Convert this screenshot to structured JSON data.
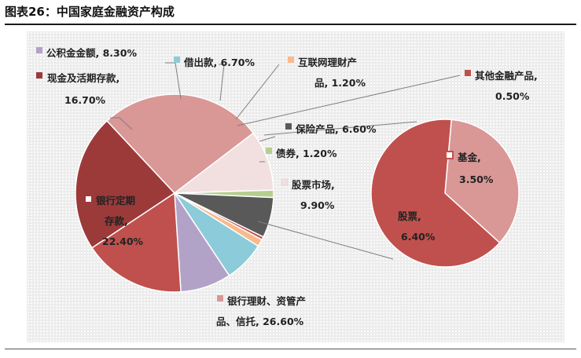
{
  "title": "图表26：中国家庭金融资产构成",
  "chart_data": {
    "type": "pie",
    "title": "图表26：中国家庭金融资产构成",
    "slices": [
      {
        "name": "银行定期存款",
        "value": 22.4,
        "display": "22.40%",
        "color": "#9c3a3a"
      },
      {
        "name": "银行理财、资管产品、信托",
        "value": 26.6,
        "display": "26.60%",
        "color": "#d99796"
      },
      {
        "name": "股票市场",
        "value": 9.9,
        "display": "9.90%",
        "color": "#f1e0df"
      },
      {
        "name": "债券",
        "value": 1.2,
        "display": "1.20%",
        "color": "#b5cf8e"
      },
      {
        "name": "保险产品",
        "value": 6.6,
        "display": "6.60%",
        "color": "#595959"
      },
      {
        "name": "其他金融产品",
        "value": 0.5,
        "display": "0.50%",
        "color": "#c0504d"
      },
      {
        "name": "互联网理财产品",
        "value": 1.2,
        "display": "1.20%",
        "color": "#f9b98c"
      },
      {
        "name": "借出款",
        "value": 6.7,
        "display": "6.70%",
        "color": "#8ccbd9"
      },
      {
        "name": "公积金金额",
        "value": 8.3,
        "display": "8.30%",
        "color": "#b3a2c7"
      },
      {
        "name": "现金及活期存款",
        "value": 16.7,
        "display": "16.70%",
        "color": "#c0504d"
      }
    ],
    "sub_pie": {
      "parent": "股票市场",
      "slices": [
        {
          "name": "基金",
          "value": 3.5,
          "display": "3.50%",
          "color": "#d99796"
        },
        {
          "name": "股票",
          "value": 6.4,
          "display": "6.40%",
          "color": "#c0504d"
        }
      ]
    }
  },
  "labels": {
    "gjj": {
      "name": "公积金金额,",
      "value": "8.30%",
      "text": "公积金金额, 8.30%"
    },
    "jck": {
      "name": "借出款,",
      "value": "6.70%",
      "text": "借出款, 6.70%"
    },
    "hlw": {
      "line1": "互联网理财产",
      "line2": "品, 1.20%"
    },
    "qita": {
      "line1": "其他金融产品,",
      "line2": "0.50%"
    },
    "xj": {
      "line1": "现金及活期存款,",
      "line2": "16.70%"
    },
    "bx": {
      "text": "保险产品, 6.60%"
    },
    "zq": {
      "text": "债券, 1.20%"
    },
    "gpsc": {
      "line1": "股票市场,",
      "line2": "9.90%"
    },
    "yhdq": {
      "line1": "银行定期",
      "line2": "存款,",
      "line3": "22.40%"
    },
    "yhlc": {
      "line1": "银行理财、资管产",
      "line2": "品、信托, 26.60%"
    },
    "jj": {
      "line1": "基金,",
      "line2": "3.50%"
    },
    "gp": {
      "line1": "股票,",
      "line2": "6.40%"
    }
  }
}
